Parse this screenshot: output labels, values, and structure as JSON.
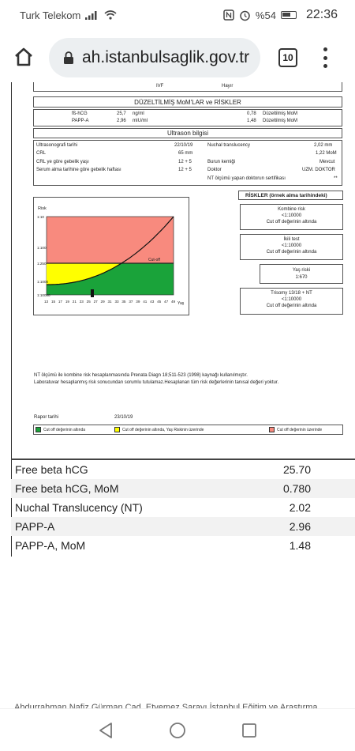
{
  "status_bar": {
    "carrier": "Turk Telekom",
    "battery": "%54",
    "time": "22:36"
  },
  "browser": {
    "url": "ah.istanbulsaglik.gov.tr",
    "tab_count": "10"
  },
  "report": {
    "top_row": {
      "left": "IVF",
      "right": "Hayır"
    },
    "corrected_header": "DÜZELTİLMİŞ  MoM'LAR ve RİSKLER",
    "hormones": [
      {
        "name": "fß-hCG",
        "value": "25,7",
        "unit": "ng/ml",
        "mom": "0,78",
        "mom_label": "Düzeltilmiş  MoM"
      },
      {
        "name": "PAPP-A",
        "value": "2,96",
        "unit": "mIU/ml",
        "mom": "1,48",
        "mom_label": "Düzeltilmiş  MoM"
      }
    ],
    "ultrasound_header": "Ultrason bilgisi",
    "ultrasound_left": [
      {
        "label": "Ultrasonografi tarihi",
        "value": "22/10/19"
      },
      {
        "label": "CRL",
        "value": "65 mm"
      },
      {
        "label": "CRL ye göre gebelik yaşı",
        "value": "12 +  5"
      },
      {
        "label": "Serum alma tarihine göre gebelik haftası",
        "value": "12 +  5"
      }
    ],
    "ultrasound_right": [
      {
        "label": "Nuchal translucency",
        "value": "2,02  mm"
      },
      {
        "label": "",
        "value": "1,22 MoM"
      },
      {
        "label": "Burun kemiği",
        "value": "Mevcut"
      },
      {
        "label": "Doktor",
        "value": "UZM. DOKTOR"
      },
      {
        "label": "NT ölçümü yapan doktorun sertifikası",
        "value": "**"
      }
    ],
    "risks_header": "RİSKLER (örnek alma tarihindeki)",
    "risk_boxes": [
      {
        "title": "Kombine risk",
        "value": "<1:10000",
        "note": "Cut off değerinin altında"
      },
      {
        "title": "İkili test",
        "value": "<1:10000",
        "note": "Cut off değerinin altında"
      },
      {
        "title": "Yaş riski",
        "value": "1:670",
        "note": ""
      },
      {
        "title": "Trisomy 13/18 + NT",
        "value": "<1:10000",
        "note": "Cut off değerinin altında"
      }
    ],
    "chart": {
      "risk_label": "Risk",
      "y_ticks": [
        "1:10",
        "1:100",
        "1:250",
        "1:1000",
        "1:10000"
      ],
      "x_ticks": [
        "13",
        "15",
        "17",
        "19",
        "21",
        "23",
        "25",
        "27",
        "29",
        "31",
        "33",
        "35",
        "37",
        "39",
        "41",
        "43",
        "45",
        "47",
        "49"
      ],
      "x_label": "Yaş",
      "cutoff_label": "Cut-off",
      "colors": {
        "high": "#f88a7e",
        "mid": "#ffff00",
        "low": "#1aa33a"
      }
    },
    "note1": "NT ölçümü ile  kombine risk hesaplanmasında Prenata Diagn 18;511-523 (1998) kaynağı kullanılmıştır.",
    "note2": "Laboratuvar hesaplanmış risk sonucundan sorumlu tutulamaz.Hesaplanan tüm risk değerlerinin  tanısal değeri yoktur.",
    "report_date_label": "Rapor tarihi",
    "report_date": "23/10/19",
    "legend": [
      {
        "label": "Cut off değerinin altında",
        "color": "#1aa33a"
      },
      {
        "label": "Cut off değerinin  altında, Yaş Riskinin üzerinde",
        "color": "#ffff00"
      },
      {
        "label": "Cut off değerinin üzerinde",
        "color": "#f88a7e"
      }
    ]
  },
  "results_table": [
    {
      "name": "Free beta hCG",
      "value": "25.70"
    },
    {
      "name": "Free beta hCG, MoM",
      "value": "0.780"
    },
    {
      "name": "Nuchal Translucency (NT)",
      "value": "2.02"
    },
    {
      "name": "PAPP-A",
      "value": "2.96"
    },
    {
      "name": "PAPP-A, MoM",
      "value": "1.48"
    }
  ],
  "footer_text": "Abdurrahman Nafiz Gürman Cad. Etyemez Sarayı İstanbul Eğitim ve Araştırma"
}
